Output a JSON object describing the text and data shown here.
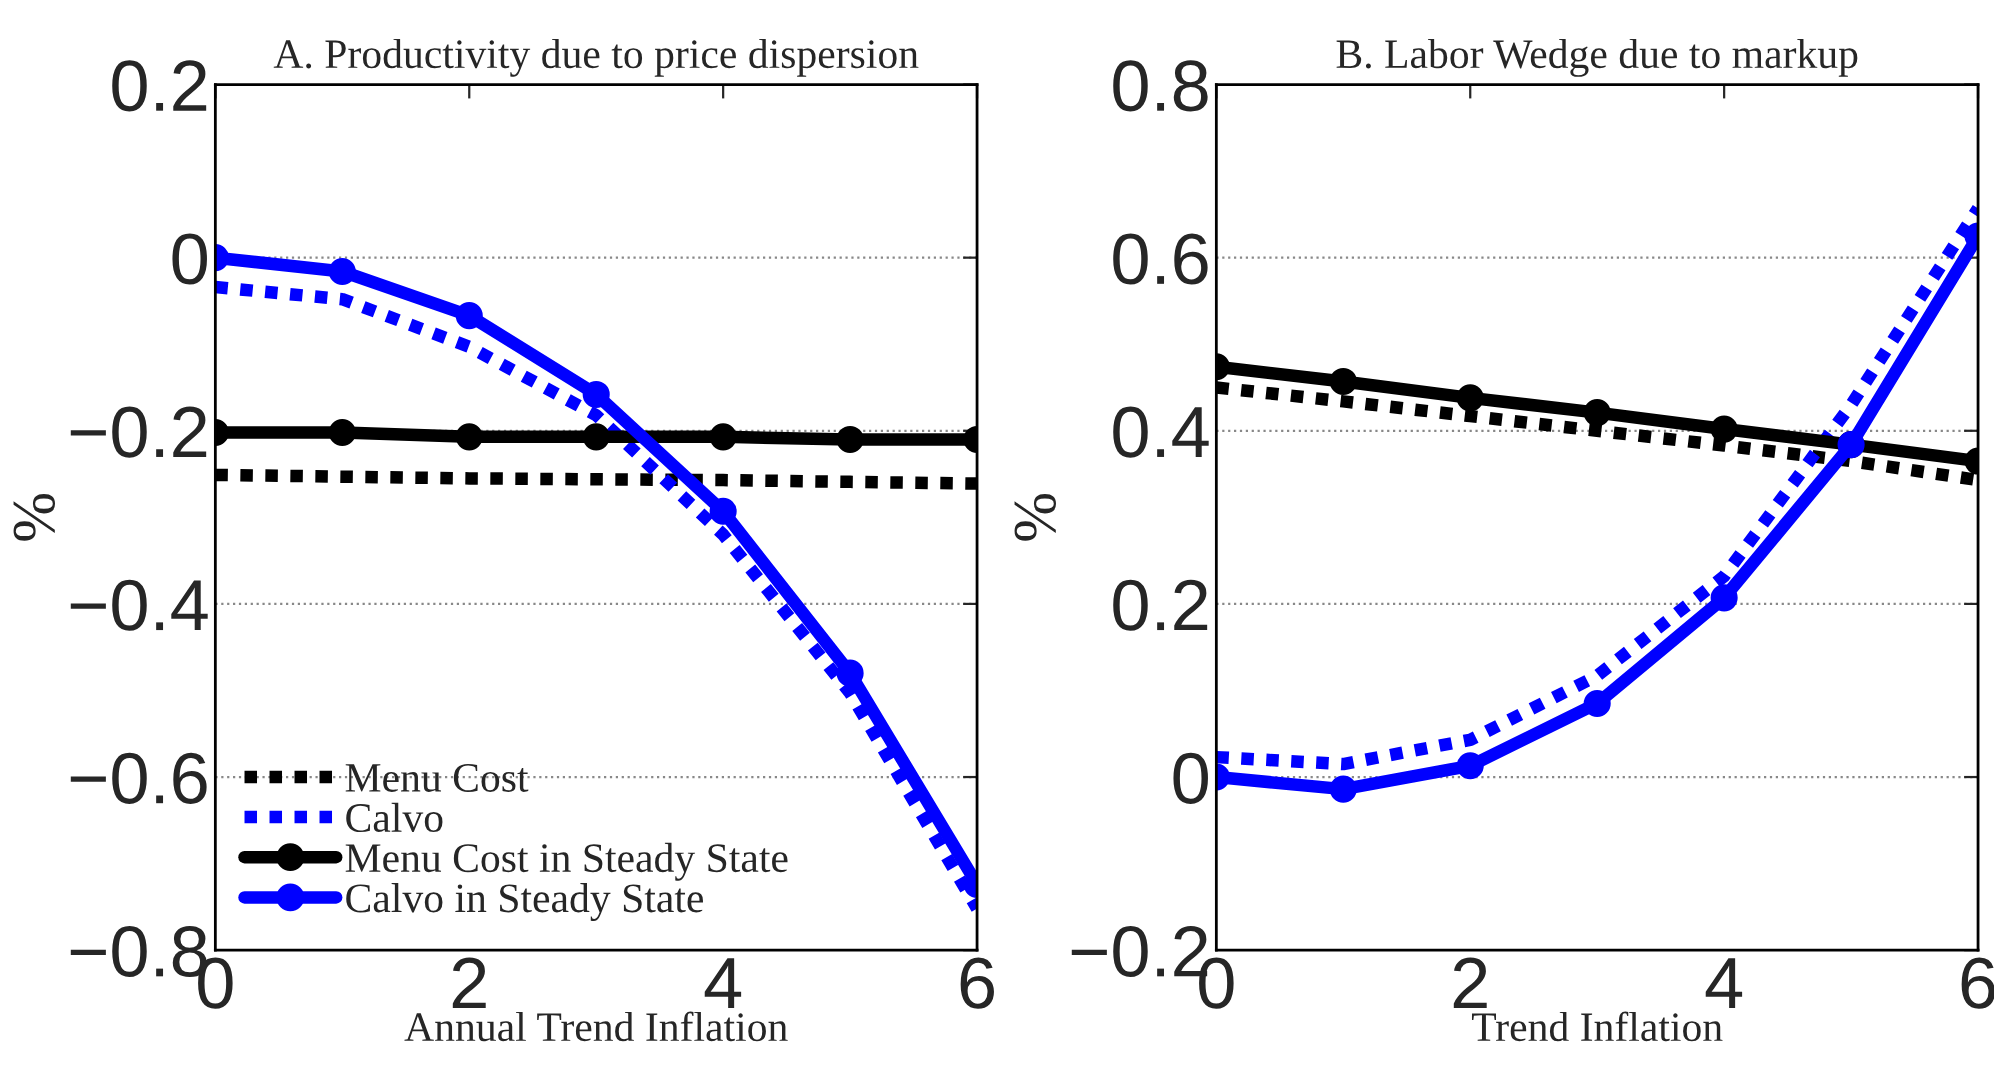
{
  "chart_data": [
    {
      "type": "line",
      "title": "A. Productivity due to price dispersion",
      "xlabel": "Annual Trend Inflation",
      "ylabel": "%",
      "x": [
        0,
        1,
        2,
        3,
        4,
        5,
        6
      ],
      "xlim": [
        0,
        6
      ],
      "xticks": [
        0,
        2,
        4,
        6
      ],
      "ylim": [
        -0.8,
        0.2
      ],
      "yticks": [
        -0.8,
        -0.6,
        -0.4,
        -0.2,
        0,
        0.2
      ],
      "grid": "y",
      "legend": "bottom left",
      "series": [
        {
          "name": "Menu Cost",
          "color": "#000000",
          "line_style": "dotted",
          "marker": "none",
          "values": [
            -0.251,
            -0.253,
            -0.255,
            -0.256,
            -0.257,
            -0.259,
            -0.261
          ]
        },
        {
          "name": "Calvo",
          "color": "#0000ff",
          "line_style": "dotted",
          "marker": "none",
          "values": [
            -0.034,
            -0.048,
            -0.103,
            -0.182,
            -0.32,
            -0.503,
            -0.752
          ]
        },
        {
          "name": "Menu Cost in Steady State",
          "color": "#000000",
          "line_style": "solid",
          "marker": "circle",
          "values": [
            -0.202,
            -0.202,
            -0.207,
            -0.207,
            -0.207,
            -0.21,
            -0.21
          ]
        },
        {
          "name": "Calvo in Steady State",
          "color": "#0000ff",
          "line_style": "solid",
          "marker": "circle",
          "values": [
            0,
            -0.016,
            -0.067,
            -0.158,
            -0.293,
            -0.48,
            -0.724
          ]
        }
      ]
    },
    {
      "type": "line",
      "title": "B. Labor Wedge due to markup",
      "xlabel": "Trend Inflation",
      "ylabel": "%",
      "x": [
        0,
        1,
        2,
        3,
        4,
        5,
        6
      ],
      "xlim": [
        0,
        6
      ],
      "xticks": [
        0,
        2,
        4,
        6
      ],
      "ylim": [
        -0.2,
        0.8
      ],
      "yticks": [
        -0.2,
        0,
        0.2,
        0.4,
        0.6,
        0.8
      ],
      "grid": "y",
      "series": [
        {
          "color": "#000000",
          "line_style": "dotted",
          "marker": "none",
          "values": [
            0.45,
            0.434,
            0.417,
            0.4,
            0.383,
            0.365,
            0.343
          ]
        },
        {
          "color": "#0000ff",
          "line_style": "dotted",
          "marker": "none",
          "values": [
            0.023,
            0.015,
            0.043,
            0.117,
            0.232,
            0.43,
            0.657
          ]
        },
        {
          "color": "#000000",
          "line_style": "solid",
          "marker": "circle",
          "values": [
            0.474,
            0.457,
            0.438,
            0.421,
            0.402,
            0.384,
            0.365
          ]
        },
        {
          "color": "#0000ff",
          "line_style": "solid",
          "marker": "circle",
          "values": [
            0,
            -0.014,
            0.013,
            0.085,
            0.207,
            0.384,
            0.625
          ]
        }
      ]
    }
  ]
}
